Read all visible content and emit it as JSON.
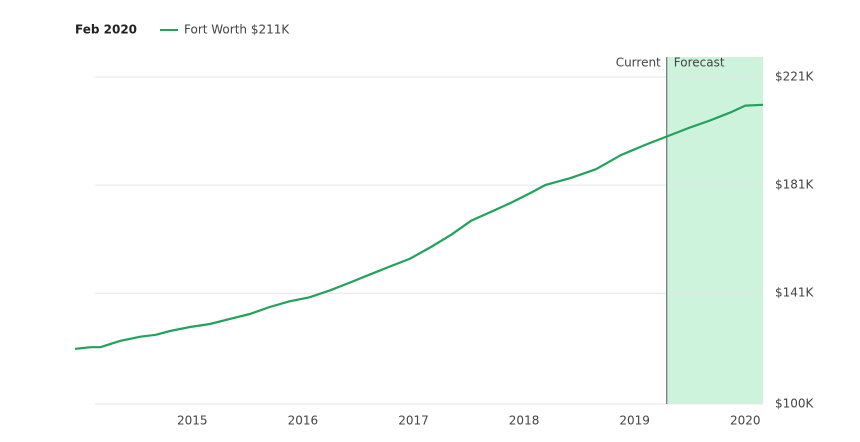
{
  "chart_data": {
    "type": "line",
    "header": "Feb 2020",
    "annotations": {
      "current": "Current",
      "forecast": "Forecast"
    },
    "forecast_start": 2019.29,
    "x": [
      2013.94,
      2014.08,
      2014.17,
      2014.35,
      2014.53,
      2014.67,
      2014.8,
      2014.98,
      2015.16,
      2015.34,
      2015.52,
      2015.7,
      2015.88,
      2016.06,
      2016.25,
      2016.43,
      2016.61,
      2016.79,
      2016.97,
      2017.15,
      2017.34,
      2017.52,
      2017.7,
      2017.88,
      2018.06,
      2018.19,
      2018.42,
      2018.65,
      2018.87,
      2019.1,
      2019.29,
      2019.5,
      2019.68,
      2019.86,
      2020.0,
      2020.16
    ],
    "series": [
      {
        "name": "Fort Worth $211K",
        "color": "#22a25a",
        "values": [
          120400,
          121000,
          121000,
          123400,
          124900,
          125600,
          127000,
          128500,
          129600,
          131500,
          133300,
          135900,
          138000,
          139500,
          142100,
          145000,
          148000,
          150900,
          153800,
          157900,
          162600,
          167800,
          171100,
          174400,
          178100,
          181000,
          183600,
          186900,
          192000,
          196000,
          199000,
          202300,
          204900,
          207800,
          210400,
          210700
        ]
      }
    ],
    "xlim": [
      2013.94,
      2020.16
    ],
    "xticks": [
      2015,
      2016,
      2017,
      2018,
      2019,
      2020
    ],
    "ylim": [
      100000,
      221000
    ],
    "yticks": [
      {
        "value": 100000,
        "label": "$100K"
      },
      {
        "value": 141000,
        "label": "$141K"
      },
      {
        "value": 181000,
        "label": "$181K"
      },
      {
        "value": 221000,
        "label": "$221K"
      }
    ],
    "grid": true,
    "forecast_color": "#cdf3dc"
  }
}
